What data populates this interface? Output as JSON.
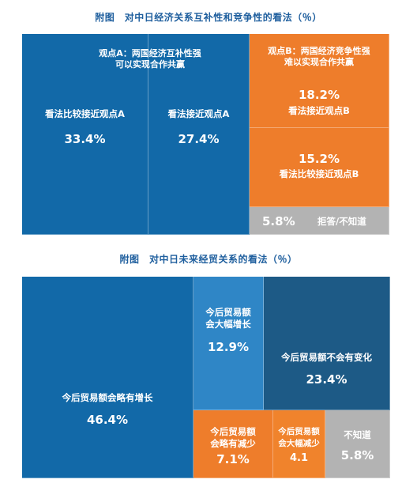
{
  "chart1": {
    "title": "附图　对中日经济关系互补性和竞争性的看法（％）",
    "note_a": [
      "观点A：两国经济互补性强",
      "可以实现合作共赢"
    ],
    "note_b": [
      "观点B：两国经济竞争性强",
      "难以实现合作共赢"
    ]
  },
  "chart2": {
    "title": "附图　对中日未来经贸关系的看法（％）"
  },
  "chart_data": [
    {
      "type": "treemap",
      "title": "附图　对中日经济关系互补性和竞争性的看法（％）",
      "items": [
        {
          "label": "看法比较接近观点A",
          "value": 33.4,
          "value_text": "33.4%",
          "color": "#1269a8"
        },
        {
          "label": "看法接近观点A",
          "value": 27.4,
          "value_text": "27.4%",
          "color": "#1269a8"
        },
        {
          "label": "看法接近观点B",
          "value": 18.2,
          "value_text": "18.2%",
          "color": "#ee7d2b"
        },
        {
          "label": "看法比较接近观点B",
          "value": 15.2,
          "value_text": "15.2%",
          "color": "#ee7d2b"
        },
        {
          "label": "拒答/不知道",
          "value": 5.8,
          "value_text": "5.8%",
          "color": "#b3b3b3"
        }
      ]
    },
    {
      "type": "treemap",
      "title": "附图　对中日未来经贸关系的看法（％）",
      "items": [
        {
          "label": "今后贸易额会略有增长",
          "value": 46.4,
          "value_text": "46.4%",
          "color": "#1269a8"
        },
        {
          "label": "今后贸易额会大幅增长",
          "value": 12.9,
          "value_text": "12.9%",
          "color": "#2f86c6"
        },
        {
          "label": "今后贸易额不会有变化",
          "value": 23.4,
          "value_text": "23.4%",
          "color": "#1d5a86"
        },
        {
          "label": "今后贸易额会略有减少",
          "value": 7.1,
          "value_text": "7.1%",
          "color": "#ee7d2b"
        },
        {
          "label": "今后贸易额会大幅减少",
          "value": 4.1,
          "value_text": "4.1",
          "color": "#f0832c"
        },
        {
          "label": "不知道",
          "value": 5.8,
          "value_text": "5.8%",
          "color": "#b3b3b3"
        }
      ]
    }
  ]
}
